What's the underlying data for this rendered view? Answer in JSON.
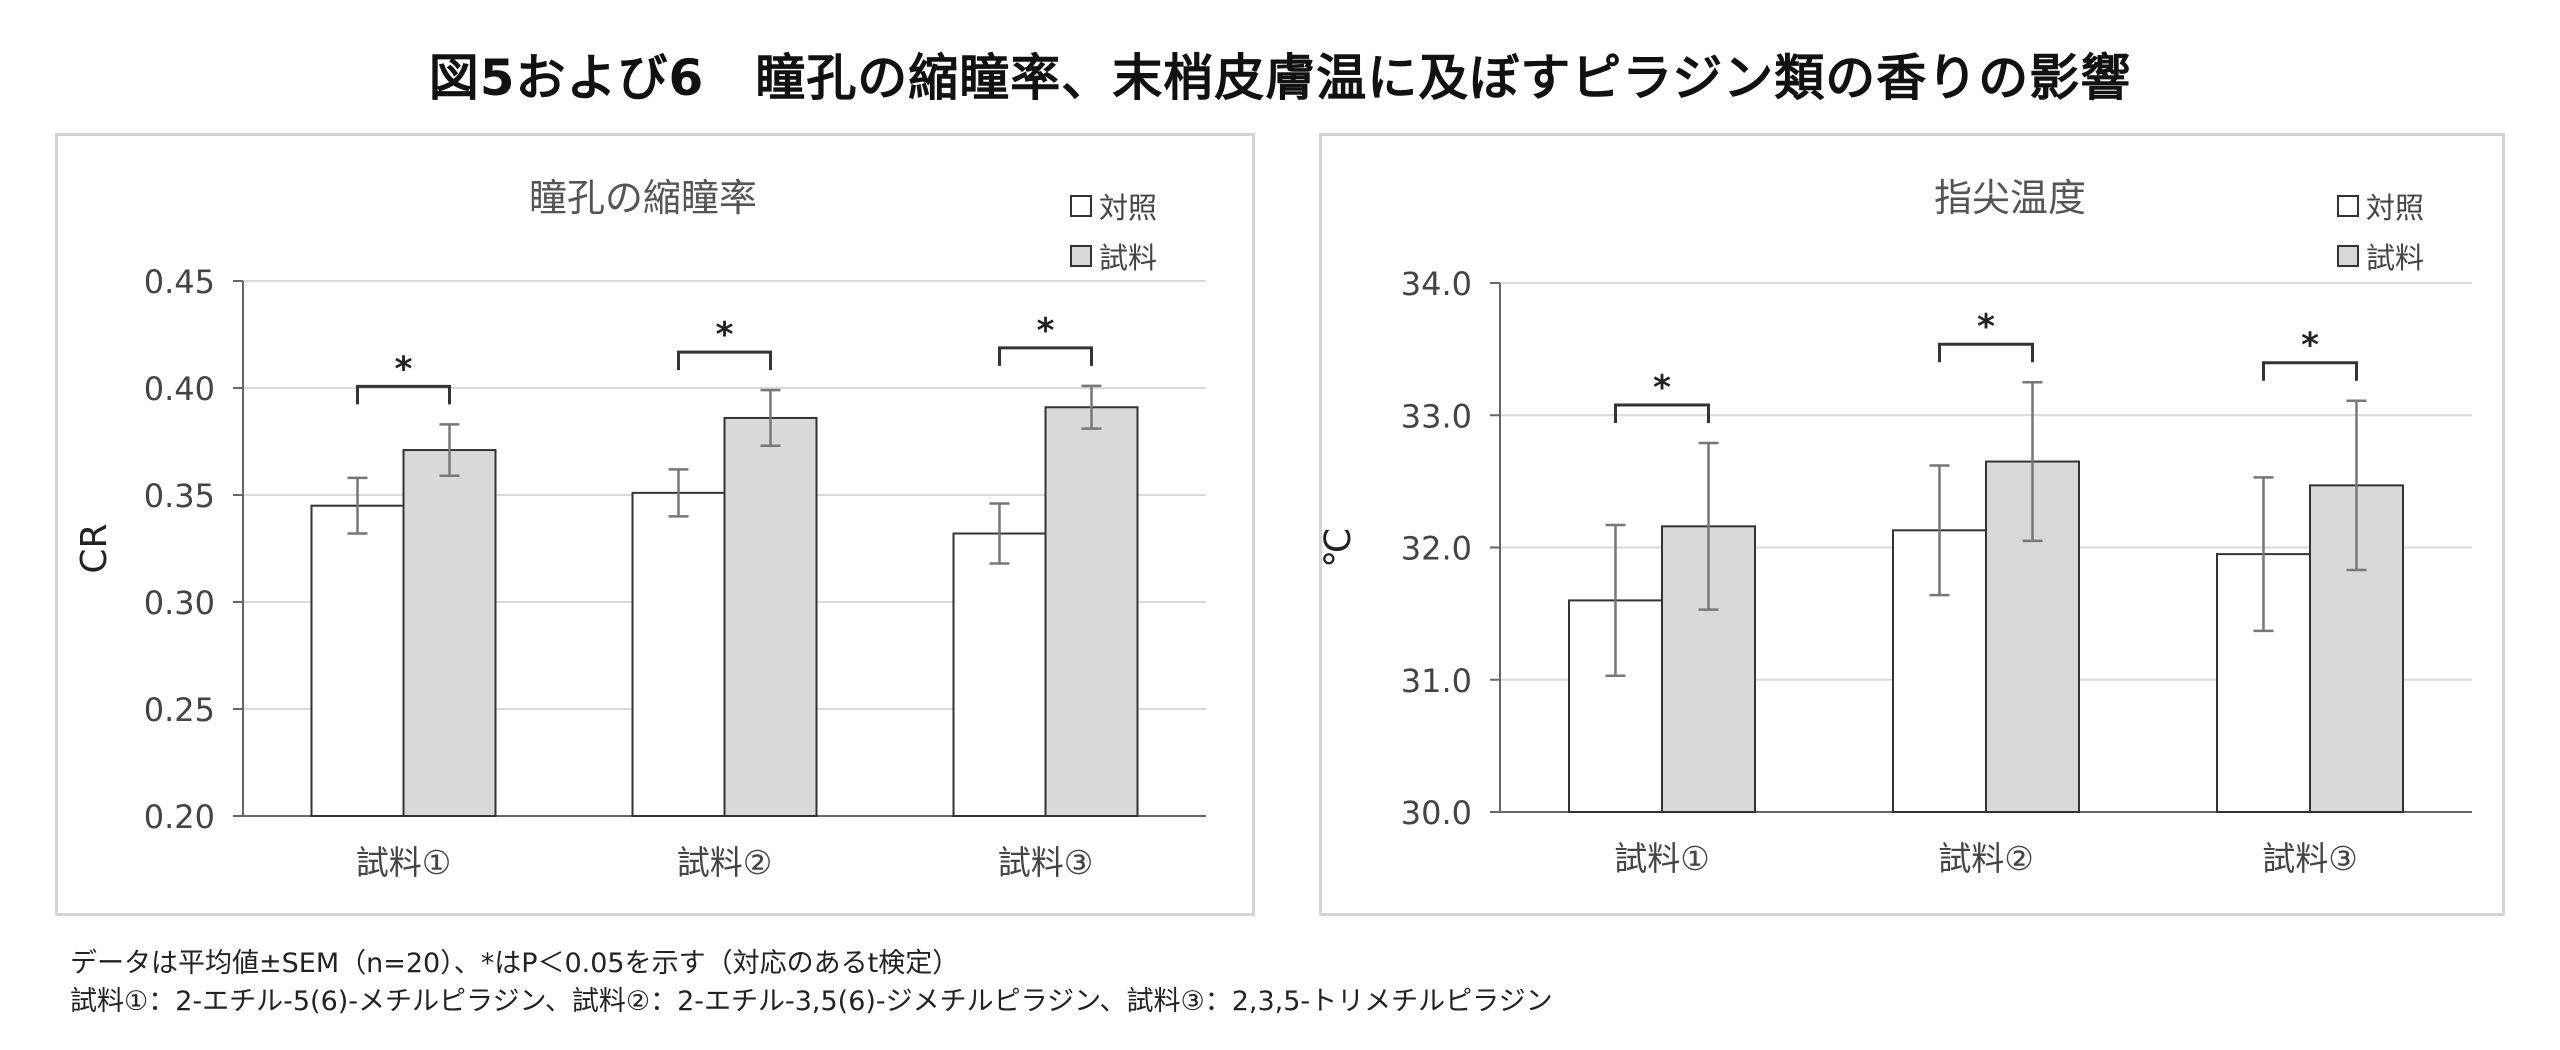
{
  "title": "図5および6　瞳孔の縮瞳率、末梢皮膚温に及ぼすピラジン類の香りの影響",
  "chart_data": [
    {
      "type": "bar",
      "title": "瞳孔の縮瞳率",
      "ylabel": "CR",
      "xlabel": "",
      "categories": [
        "試料①",
        "試料②",
        "試料③"
      ],
      "ylim": [
        0.2,
        0.45
      ],
      "yticks": [
        "0.20",
        "0.25",
        "0.30",
        "0.35",
        "0.40",
        "0.45"
      ],
      "grid": true,
      "legend": "top-right",
      "series": [
        {
          "name": "対照",
          "values": [
            0.345,
            0.351,
            0.332
          ],
          "errors": [
            0.013,
            0.011,
            0.014
          ],
          "color": "#ffffff"
        },
        {
          "name": "試料",
          "values": [
            0.371,
            0.386,
            0.391
          ],
          "errors": [
            0.012,
            0.013,
            0.01
          ],
          "color": "#d9d9d9"
        }
      ],
      "significance": [
        "*",
        "*",
        "*"
      ]
    },
    {
      "type": "bar",
      "title": "指尖温度",
      "ylabel": "℃",
      "xlabel": "",
      "categories": [
        "試料①",
        "試料②",
        "試料③"
      ],
      "ylim": [
        30.0,
        34.0
      ],
      "yticks": [
        "30.0",
        "31.0",
        "32.0",
        "33.0",
        "34.0"
      ],
      "grid": true,
      "legend": "top-right",
      "series": [
        {
          "name": "対照",
          "values": [
            31.6,
            32.13,
            31.95
          ],
          "errors": [
            0.57,
            0.49,
            0.58
          ],
          "color": "#ffffff"
        },
        {
          "name": "試料",
          "values": [
            32.16,
            32.65,
            32.47
          ],
          "errors": [
            0.63,
            0.6,
            0.64
          ],
          "color": "#d9d9d9"
        }
      ],
      "significance": [
        "*",
        "*",
        "*"
      ]
    }
  ],
  "footnote": {
    "line1": "データは平均値±SEM（n=20）、*はP＜0.05を示す（対応のあるt検定）",
    "line2": "試料①：2-エチル-5(6)-メチルピラジン、試料②：2-エチル-3,5(6)-ジメチルピラジン、試料③：2,3,5-トリメチルピラジン"
  }
}
